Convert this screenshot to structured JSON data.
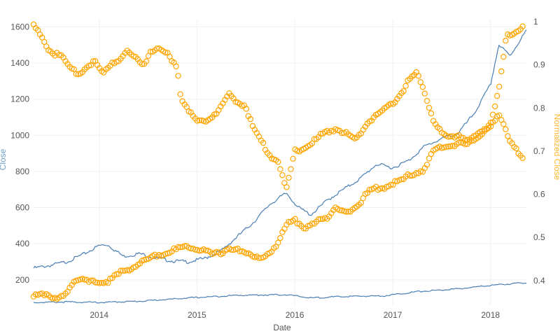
{
  "chart_data": {
    "type": "line",
    "title": "",
    "xlabel": "Date",
    "ylabel": "Close",
    "y2label": "Normalized Close",
    "x_tick_labels": [
      "2014",
      "2015",
      "2016",
      "2017",
      "2018"
    ],
    "x_range": [
      "2013-05-01",
      "2018-05-15"
    ],
    "ylim": [
      60,
      1640
    ],
    "y_ticks": [
      200,
      400,
      600,
      800,
      1000,
      1200,
      1400,
      1600
    ],
    "y2lim": [
      0.343,
      1.005
    ],
    "y2_ticks": [
      0.4,
      0.5,
      0.6,
      0.7,
      0.8,
      0.9,
      1
    ],
    "grid": true,
    "legend": "none",
    "colors": {
      "line": "#4a7fb5",
      "points": "#ffa500",
      "ylabel": "#6fa0cc",
      "y2label": "#ffb733"
    },
    "series": [
      {
        "type": "line",
        "axis": "y",
        "x": [
          "2013-05-01",
          "2013-07-01",
          "2013-09-01",
          "2013-11-01",
          "2014-01-01",
          "2014-02-01",
          "2014-04-01",
          "2014-06-01",
          "2014-08-01",
          "2014-10-01",
          "2014-12-01",
          "2015-02-01",
          "2015-04-01",
          "2015-06-01",
          "2015-08-01",
          "2015-10-01",
          "2015-12-01",
          "2016-01-15",
          "2016-03-01",
          "2016-05-01",
          "2016-07-01",
          "2016-09-01",
          "2016-11-01",
          "2017-01-01",
          "2017-03-01",
          "2017-05-01",
          "2017-07-01",
          "2017-09-01",
          "2017-11-01",
          "2018-01-01",
          "2018-02-01",
          "2018-03-15",
          "2018-05-15"
        ],
        "y": [
          265,
          280,
          300,
          340,
          390,
          395,
          330,
          345,
          320,
          305,
          300,
          320,
          360,
          440,
          520,
          620,
          680,
          600,
          560,
          640,
          700,
          760,
          840,
          820,
          860,
          940,
          980,
          1010,
          1120,
          1280,
          1500,
          1440,
          1580
        ]
      },
      {
        "type": "line",
        "axis": "y",
        "x": [
          "2013-05-01",
          "2013-09-01",
          "2014-01-01",
          "2014-06-01",
          "2014-12-01",
          "2015-06-01",
          "2015-12-01",
          "2016-03-01",
          "2016-07-01",
          "2016-12-01",
          "2017-04-01",
          "2017-09-01",
          "2018-01-01",
          "2018-05-15"
        ],
        "y": [
          75,
          78,
          75,
          82,
          100,
          115,
          118,
          100,
          108,
          112,
          135,
          150,
          170,
          185
        ]
      },
      {
        "type": "scatter",
        "axis": "y2",
        "x": [
          "2013-05-01",
          "2013-06-15",
          "2013-07-15",
          "2013-08-01",
          "2013-09-15",
          "2013-10-15",
          "2013-11-15",
          "2013-12-15",
          "2014-01-15",
          "2014-02-15",
          "2014-03-15",
          "2014-04-15",
          "2014-05-15",
          "2014-06-15",
          "2014-07-15",
          "2014-08-15",
          "2014-09-15",
          "2014-10-20",
          "2014-11-01",
          "2014-12-01",
          "2015-01-01",
          "2015-02-15",
          "2015-04-01",
          "2015-05-01",
          "2015-06-01",
          "2015-07-01",
          "2015-08-01",
          "2015-09-01",
          "2015-10-01",
          "2015-11-01",
          "2015-12-01",
          "2016-01-01",
          "2016-02-01",
          "2016-03-01",
          "2016-04-15",
          "2016-06-01",
          "2016-07-15",
          "2016-08-15",
          "2016-10-01",
          "2016-11-15",
          "2017-01-01",
          "2017-02-01",
          "2017-03-01",
          "2017-04-01",
          "2017-05-01",
          "2017-06-01",
          "2017-07-01",
          "2017-08-01",
          "2017-09-01",
          "2017-10-01",
          "2017-11-01",
          "2017-12-01",
          "2018-01-01",
          "2018-02-01",
          "2018-03-15",
          "2018-05-01"
        ],
        "y": [
          0.993,
          0.946,
          0.924,
          0.93,
          0.89,
          0.88,
          0.895,
          0.91,
          0.878,
          0.905,
          0.912,
          0.932,
          0.917,
          0.9,
          0.935,
          0.935,
          0.924,
          0.895,
          0.825,
          0.792,
          0.77,
          0.774,
          0.8,
          0.83,
          0.815,
          0.805,
          0.75,
          0.72,
          0.69,
          0.675,
          0.61,
          0.7,
          0.705,
          0.718,
          0.74,
          0.752,
          0.74,
          0.724,
          0.768,
          0.79,
          0.81,
          0.834,
          0.863,
          0.88,
          0.835,
          0.775,
          0.741,
          0.73,
          0.74,
          0.727,
          0.732,
          0.745,
          0.76,
          0.788,
          0.72,
          0.686
        ]
      },
      {
        "type": "scatter",
        "axis": "y2",
        "x": [
          "2013-05-01",
          "2013-06-01",
          "2013-07-01",
          "2013-08-01",
          "2013-08-15",
          "2013-09-01",
          "2013-10-01",
          "2013-11-01",
          "2013-12-01",
          "2014-01-01",
          "2014-02-01",
          "2014-03-01",
          "2014-04-01",
          "2014-05-01",
          "2014-06-01",
          "2014-07-01",
          "2014-08-01",
          "2014-09-01",
          "2014-10-01",
          "2014-11-01",
          "2014-12-01",
          "2015-01-01",
          "2015-02-01",
          "2015-03-01",
          "2015-04-01",
          "2015-05-01",
          "2015-06-01",
          "2015-07-01",
          "2015-08-01",
          "2015-09-01",
          "2015-10-01",
          "2015-11-01",
          "2015-12-01",
          "2016-01-01",
          "2016-02-01",
          "2016-03-01",
          "2016-04-01",
          "2016-05-01",
          "2016-06-01",
          "2016-07-01",
          "2016-08-01",
          "2016-09-01",
          "2016-10-01",
          "2016-11-01",
          "2016-12-01",
          "2017-01-01",
          "2017-02-01",
          "2017-03-01",
          "2017-04-01",
          "2017-05-01",
          "2017-06-01",
          "2017-07-01",
          "2017-08-01",
          "2017-09-01",
          "2017-10-01",
          "2017-11-01",
          "2017-12-01",
          "2018-01-01",
          "2018-02-01",
          "2018-03-01",
          "2018-04-01",
          "2018-05-01"
        ],
        "y": [
          0.366,
          0.375,
          0.359,
          0.356,
          0.366,
          0.373,
          0.4,
          0.4,
          0.396,
          0.397,
          0.398,
          0.41,
          0.422,
          0.429,
          0.44,
          0.447,
          0.46,
          0.461,
          0.47,
          0.475,
          0.48,
          0.475,
          0.47,
          0.46,
          0.465,
          0.475,
          0.47,
          0.462,
          0.458,
          0.455,
          0.46,
          0.485,
          0.534,
          0.545,
          0.517,
          0.525,
          0.547,
          0.545,
          0.566,
          0.56,
          0.563,
          0.582,
          0.605,
          0.615,
          0.615,
          0.625,
          0.63,
          0.645,
          0.65,
          0.658,
          0.7,
          0.71,
          0.712,
          0.717,
          0.714,
          0.728,
          0.742,
          0.76,
          0.84,
          0.97,
          0.975,
          0.985
        ]
      }
    ]
  }
}
